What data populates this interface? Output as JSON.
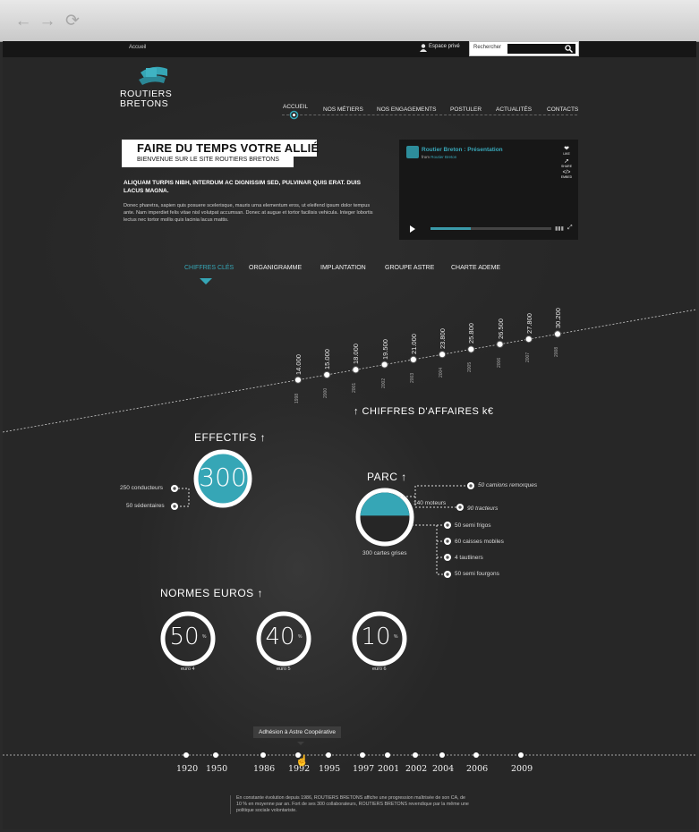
{
  "topbar": {
    "home_link": "Accueil",
    "private_space": "Espace privé",
    "search_placeholder": "Rechercher"
  },
  "brand": {
    "line1": "ROUTIERS",
    "line2": "BRETONS"
  },
  "main_nav": [
    "ACCUEIL",
    "NOS MÉTIERS",
    "NOS ENGAGEMENTS",
    "POSTULER",
    "ACTUALITÉS",
    "CONTACTS"
  ],
  "intro": {
    "title": "FAIRE DU TEMPS VOTRE ALLIÉ",
    "subtitle": "BIENVENUE SUR LE SITE ROUTIERS BRETONS",
    "lead": "ALIQUAM TURPIS NIBH, INTERDUM AC DIGNISSIM SED, PULVINAR QUIS ERAT. DUIS LACUS MAGNA.",
    "body": "Donec pharetra, sapien quis posuere scelerisque, mauris urna elementum eros, ut eleifend ipsum dolor tempus ante. Nam imperdiet felis vitae nisl volutpat accumsan. Donec at augue et tortor facilisis vehicula. Integer lobortis lectus nec tortor mollis quis lacinia lacus mattis."
  },
  "video": {
    "title": "Routier Breton : Présentation",
    "from_label": "from",
    "from_name": "Routier Breton",
    "like": "LIKE",
    "share": "SHARE",
    "embed": "EMBED",
    "progress": 0.33
  },
  "tabs": [
    "CHIFFRES CLÉS",
    "ORGANIGRAMME",
    "IMPLANTATION",
    "GROUPE ASTRE",
    "CHARTE ADEME"
  ],
  "revenue_title": "↑ CHIFFRES D'AFFAIRES k€",
  "chart_data": {
    "type": "line",
    "title": "CHIFFRES D'AFFAIRES k€",
    "x": [
      "1998",
      "2000",
      "2001",
      "2002",
      "2003",
      "2004",
      "2005",
      "2006",
      "2007",
      "2008"
    ],
    "values": [
      14000,
      15000,
      18000,
      19500,
      21000,
      23800,
      25800,
      26500,
      27800,
      30200
    ],
    "value_labels": [
      "14.000",
      "15.000",
      "18.000",
      "19.500",
      "21.000",
      "23.800",
      "25.800",
      "26.500",
      "27.800",
      "30.200"
    ]
  },
  "effectifs": {
    "title": "EFFECTIFS ↑",
    "total": "300",
    "items": [
      "250 conducteurs",
      "50 sédentaires"
    ]
  },
  "parc": {
    "title": "PARC ↑",
    "motors": "140 moteurs",
    "grey_cards": "300 cartes grises",
    "motor_items": [
      "50 camions remorques",
      "90 tracteurs"
    ],
    "other_items": [
      "50 semi frigos",
      "60 caisses mobiles",
      "4 tautliners",
      "50 semi fourgons"
    ],
    "fill_fraction": 0.47
  },
  "normes": {
    "title": "NORMES EUROS ↑",
    "items": [
      {
        "value": "50",
        "unit": "%",
        "label": "euro 4"
      },
      {
        "value": "40",
        "unit": "%",
        "label": "euro 5"
      },
      {
        "value": "10",
        "unit": "%",
        "label": "euro 6"
      }
    ]
  },
  "timeline": {
    "tooltip": "Adhésion à Astre Coopérative",
    "years": [
      "1920",
      "1950",
      "1986",
      "1992",
      "1995",
      "1997",
      "2001",
      "2002",
      "2004",
      "2006",
      "2009"
    ],
    "footer": "En constante évolution depuis 1986, ROUTIERS BRETONS affiche une progression maîtrisée de son CA, de 10 % en moyenne par an. Fort de ses 300 collaborateurs, ROUTIERS BRETONS revendique par la même une politique sociale volontariste."
  },
  "colors": {
    "accent": "#36a6b6",
    "background": "#272727"
  }
}
